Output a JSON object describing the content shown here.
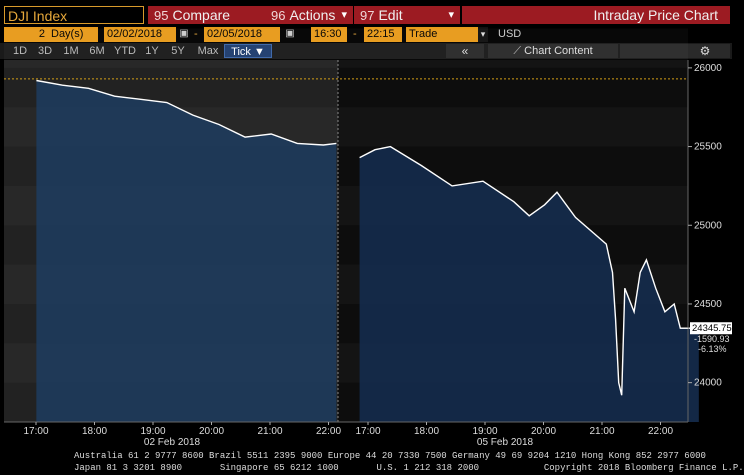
{
  "header": {
    "security": "DJI Index",
    "compare": {
      "num": "95",
      "label": "Compare"
    },
    "actions": {
      "num": "96",
      "label": "Actions"
    },
    "edit": {
      "num": "97",
      "label": "Edit"
    },
    "chart_title": "Intraday Price Chart"
  },
  "controls": {
    "days_num": "2",
    "days_unit": "Day(s)",
    "start_date": "02/02/2018",
    "end_date": "02/05/2018",
    "start_time": "16:30",
    "end_time": "22:15",
    "trade": "Trade",
    "currency": "USD",
    "dash": "-"
  },
  "periods": [
    "1D",
    "3D",
    "1M",
    "6M",
    "YTD",
    "1Y",
    "5Y",
    "Max"
  ],
  "tick_label": "Tick ▼",
  "chart_content_label": "Chart Content",
  "collapse_icon": "«",
  "settings_icon": "⚙",
  "colors": {
    "accent_orange": "#e89a1a",
    "red_button": "#9c1b22",
    "area_fill": "#1e3b5e",
    "line": "#ffffff",
    "ref_line": "#d4a017"
  },
  "chart_data": {
    "type": "area",
    "y_ticks": [
      24000,
      24500,
      25000,
      25500,
      26000
    ],
    "ylim": [
      23750,
      26050
    ],
    "x_tick_labels": [
      "17:00",
      "18:00",
      "19:00",
      "20:00",
      "21:00",
      "22:00",
      "17:00",
      "18:00",
      "19:00",
      "20:00",
      "21:00",
      "22:00"
    ],
    "date_labels": [
      "02 Feb 2018",
      "05 Feb 2018"
    ],
    "reference_line": 25930,
    "last_price": "24345.75",
    "net_change": "-1590.93",
    "pct_change": "-6.13%",
    "series": [
      {
        "session": "02 Feb 2018",
        "points": [
          [
            0,
            25920
          ],
          [
            0.5,
            25890
          ],
          [
            1,
            25870
          ],
          [
            1.5,
            25820
          ],
          [
            2,
            25800
          ],
          [
            2.5,
            25780
          ],
          [
            3,
            25700
          ],
          [
            3.5,
            25640
          ],
          [
            4,
            25560
          ],
          [
            4.5,
            25580
          ],
          [
            5,
            25520
          ],
          [
            5.5,
            25510
          ],
          [
            5.75,
            25520
          ]
        ]
      },
      {
        "session": "05 Feb 2018",
        "points": [
          [
            6,
            25430
          ],
          [
            6.25,
            25480
          ],
          [
            6.5,
            25500
          ],
          [
            7,
            25380
          ],
          [
            7.5,
            25250
          ],
          [
            8,
            25280
          ],
          [
            8.5,
            25150
          ],
          [
            8.75,
            25060
          ],
          [
            9,
            25130
          ],
          [
            9.2,
            25210
          ],
          [
            9.5,
            25050
          ],
          [
            10,
            24880
          ],
          [
            10.1,
            24700
          ],
          [
            10.15,
            24400
          ],
          [
            10.2,
            24000
          ],
          [
            10.25,
            23920
          ],
          [
            10.3,
            24600
          ],
          [
            10.45,
            24450
          ],
          [
            10.55,
            24700
          ],
          [
            10.65,
            24780
          ],
          [
            10.8,
            24600
          ],
          [
            10.95,
            24450
          ],
          [
            11.1,
            24500
          ],
          [
            11.2,
            24345.75
          ],
          [
            11.5,
            24345.75
          ]
        ]
      }
    ]
  },
  "footer": {
    "line1": "Australia 61 2 9777 8600 Brazil 5511 2395 9000 Europe 44 20 7330 7500 Germany 49 69 9204 1210 Hong Kong 852 2977 6000",
    "line2": "Japan 81 3 3201 8900       Singapore 65 6212 1000       U.S. 1 212 318 2000            Copyright 2018 Bloomberg Finance L.P."
  }
}
